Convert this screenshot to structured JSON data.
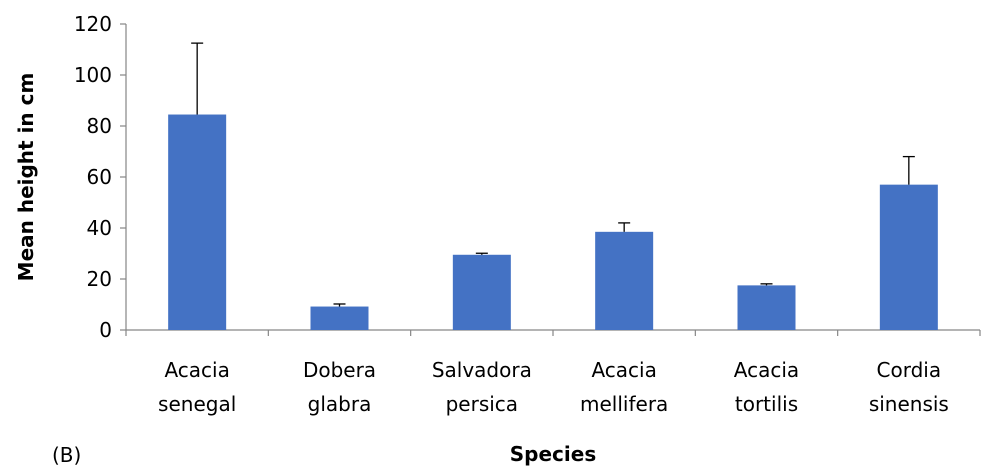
{
  "chart_data": {
    "type": "bar",
    "panel_label": "(B)",
    "xlabel": "Species",
    "ylabel": "Mean height in cm",
    "ylim": [
      0,
      120
    ],
    "yticks": [
      0,
      20,
      40,
      60,
      80,
      100,
      120
    ],
    "grid": false,
    "legend": "none",
    "bar_color": "#4472C4",
    "categories": [
      [
        "Acacia",
        "senegal"
      ],
      [
        "Dobera",
        "glabra"
      ],
      [
        "Salvadora",
        "persica"
      ],
      [
        "Acacia",
        "mellifera"
      ],
      [
        "Acacia",
        "tortilis"
      ],
      [
        "Cordia",
        "sinensis"
      ]
    ],
    "values": [
      84.5,
      9.2,
      29.5,
      38.5,
      17.5,
      57.0
    ],
    "errors": [
      28.0,
      1.0,
      0.6,
      3.5,
      0.6,
      11.0
    ]
  }
}
